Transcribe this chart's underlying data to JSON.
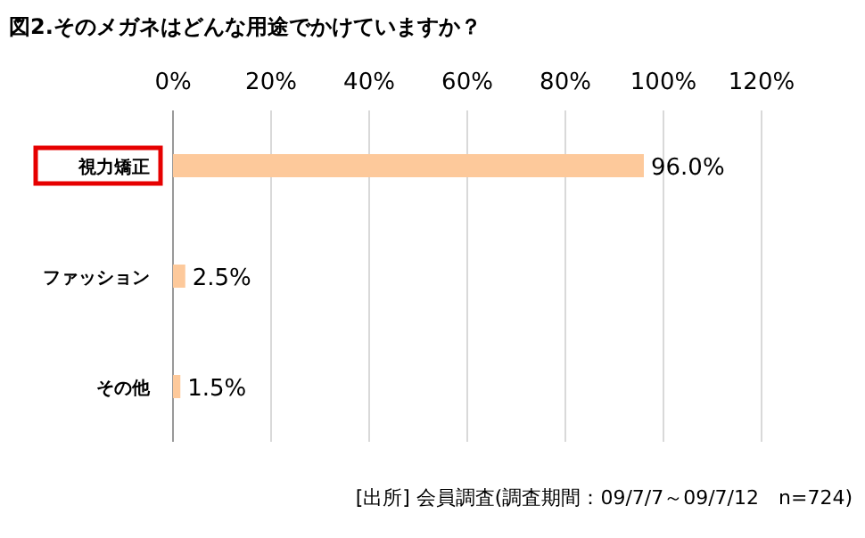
{
  "chart_data": {
    "type": "bar",
    "orientation": "horizontal",
    "title": "図2.そのメガネはどんな用途でかけていますか？",
    "categories": [
      "視力矯正",
      "ファッション",
      "その他"
    ],
    "values": [
      96.0,
      2.5,
      1.5
    ],
    "value_labels": [
      "96.0%",
      "2.5%",
      "1.5%"
    ],
    "color": "#fdc99b",
    "xlim": [
      0,
      120
    ],
    "xticks": [
      {
        "value": 0,
        "label": "0%"
      },
      {
        "value": 20,
        "label": "20%"
      },
      {
        "value": 40,
        "label": "40%"
      },
      {
        "value": 60,
        "label": "60%"
      },
      {
        "value": 80,
        "label": "80%"
      },
      {
        "value": 100,
        "label": "100%"
      },
      {
        "value": 120,
        "label": "120%"
      }
    ],
    "grid": "x",
    "annotations": [
      "[出所] 会員調査(調査期間：09/7/7～09/7/12　n=724)"
    ]
  }
}
